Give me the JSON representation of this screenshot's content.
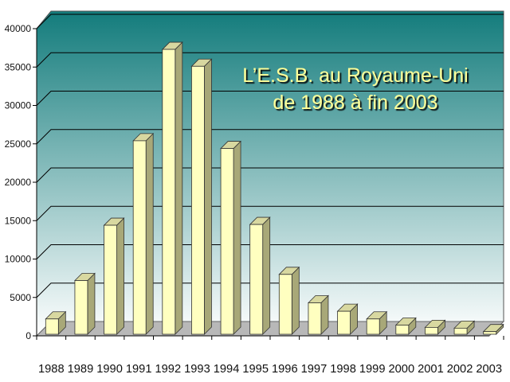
{
  "chart_data": {
    "type": "bar",
    "title_lines": [
      "L’E.S.B. au Royaume-Uni",
      "de 1988 à fin 2003"
    ],
    "xlabel": "",
    "ylabel": "",
    "categories": [
      "1988",
      "1989",
      "1990",
      "1991",
      "1992",
      "1993",
      "1994",
      "1995",
      "1996",
      "1997",
      "1998",
      "1999",
      "2000",
      "2001",
      "2002",
      "2003"
    ],
    "values": [
      2200,
      7200,
      14400,
      25400,
      37300,
      35100,
      24400,
      14500,
      8000,
      4300,
      3200,
      2200,
      1400,
      1100,
      1000,
      550
    ],
    "ylim": [
      0,
      40000
    ],
    "yticks": [
      0,
      5000,
      10000,
      15000,
      20000,
      25000,
      30000,
      35000,
      40000
    ],
    "grid": true,
    "legend": "none",
    "colors": {
      "bar_front": "#ffffc0",
      "bar_side": "#a8a878",
      "bar_top": "#d8d8a0",
      "wall_top": "#137c7c",
      "wall_bottom": "#ffffff",
      "floor": "#b8b8b8",
      "title": "#ffff99"
    }
  }
}
